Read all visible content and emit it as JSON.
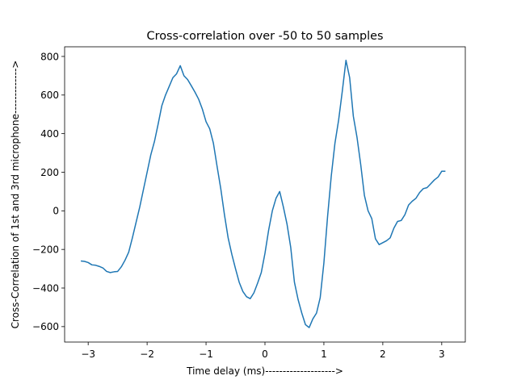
{
  "chart_data": {
    "type": "line",
    "title": "Cross-correlation over -50 to 50 samples",
    "xlabel": "Time delay (ms)-------------------->",
    "ylabel": "Cross-Correlation of 1st and 3rd microphone------------->",
    "xlim": [
      -3.4,
      3.4
    ],
    "ylim": [
      -680,
      850
    ],
    "grid": false,
    "legend": "none",
    "x_ticks": [
      -3,
      -2,
      -1,
      0,
      1,
      2,
      3
    ],
    "x_tick_labels": [
      "−3",
      "−2",
      "−1",
      "0",
      "1",
      "2",
      "3"
    ],
    "y_ticks": [
      -600,
      -400,
      -200,
      0,
      200,
      400,
      600,
      800
    ],
    "y_tick_labels": [
      "−600",
      "−400",
      "−200",
      "0",
      "200",
      "400",
      "600",
      "800"
    ],
    "series": [
      {
        "color": "#1f77b4",
        "x": [
          -3.125,
          -3.0625,
          -3.0,
          -2.9375,
          -2.875,
          -2.8125,
          -2.75,
          -2.6875,
          -2.625,
          -2.5625,
          -2.5,
          -2.4375,
          -2.375,
          -2.3125,
          -2.25,
          -2.1875,
          -2.125,
          -2.0625,
          -2.0,
          -1.9375,
          -1.875,
          -1.8125,
          -1.75,
          -1.6875,
          -1.625,
          -1.5625,
          -1.5,
          -1.4375,
          -1.375,
          -1.3125,
          -1.25,
          -1.1875,
          -1.125,
          -1.0625,
          -1.0,
          -0.9375,
          -0.875,
          -0.8125,
          -0.75,
          -0.6875,
          -0.625,
          -0.5625,
          -0.5,
          -0.4375,
          -0.375,
          -0.3125,
          -0.25,
          -0.1875,
          -0.125,
          -0.0625,
          0.0,
          0.0625,
          0.125,
          0.1875,
          0.25,
          0.3125,
          0.375,
          0.4375,
          0.5,
          0.5625,
          0.625,
          0.6875,
          0.75,
          0.8125,
          0.875,
          0.9375,
          1.0,
          1.0625,
          1.125,
          1.1875,
          1.25,
          1.3125,
          1.375,
          1.4375,
          1.5,
          1.5625,
          1.625,
          1.6875,
          1.75,
          1.8125,
          1.875,
          1.9375,
          2.0,
          2.0625,
          2.125,
          2.1875,
          2.25,
          2.3125,
          2.375,
          2.4375,
          2.5,
          2.5625,
          2.625,
          2.6875,
          2.75,
          2.8125,
          2.875,
          2.9375,
          3.0,
          3.0625
        ],
        "y": [
          -260,
          -262,
          -268,
          -280,
          -282,
          -288,
          -296,
          -314,
          -320,
          -316,
          -314,
          -290,
          -256,
          -214,
          -140,
          -60,
          20,
          110,
          200,
          290,
          360,
          450,
          545,
          600,
          645,
          690,
          710,
          752,
          700,
          680,
          648,
          615,
          578,
          527,
          462,
          425,
          350,
          230,
          115,
          -20,
          -140,
          -225,
          -300,
          -370,
          -418,
          -445,
          -455,
          -425,
          -375,
          -320,
          -220,
          -100,
          0,
          65,
          100,
          20,
          -70,
          -190,
          -370,
          -460,
          -530,
          -590,
          -605,
          -560,
          -530,
          -450,
          -270,
          -30,
          180,
          350,
          470,
          620,
          780,
          690,
          490,
          380,
          240,
          80,
          0,
          -40,
          -145,
          -175,
          -165,
          -155,
          -140,
          -90,
          -55,
          -50,
          -20,
          30,
          50,
          65,
          95,
          115,
          120,
          140,
          160,
          175,
          205,
          205
        ]
      }
    ]
  }
}
